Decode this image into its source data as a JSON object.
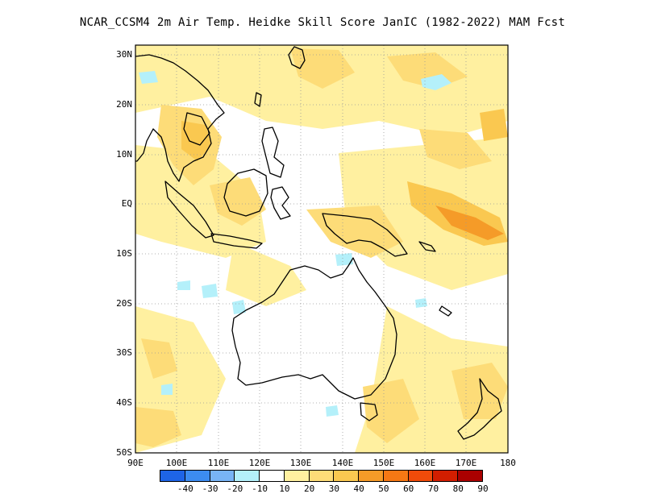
{
  "title": "NCAR_CCSM4  2m Air Temp. Heidke Skill Score JanIC (1982-2022) MAM Fcst",
  "lat_ticks": [
    "30N",
    "20N",
    "10N",
    "EQ",
    "10S",
    "20S",
    "30S",
    "40S",
    "50S"
  ],
  "lon_ticks": [
    "90E",
    "100E",
    "110E",
    "120E",
    "130E",
    "140E",
    "150E",
    "160E",
    "170E",
    "180"
  ],
  "colorbar": {
    "labels": [
      "-40",
      "-30",
      "-20",
      "-10",
      "10",
      "20",
      "30",
      "40",
      "50",
      "60",
      "70",
      "80",
      "90"
    ],
    "colors": [
      "#1e64e6",
      "#3c8cf0",
      "#78b4f5",
      "#b4f0fa",
      "#ffffff",
      "#fff0a0",
      "#fddc78",
      "#fac850",
      "#f59b28",
      "#f57814",
      "#f04b0a",
      "#d21e00",
      "#aa0000"
    ]
  },
  "map": {
    "lon_range": [
      90,
      180
    ],
    "lat_range": [
      -50,
      32
    ],
    "grid": "dotted"
  }
}
